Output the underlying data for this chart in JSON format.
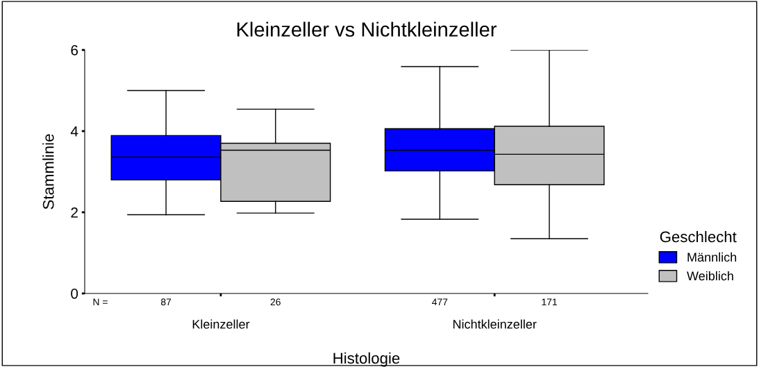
{
  "chart_data": {
    "type": "box",
    "title": "Kleinzeller vs Nichtkleinzeller",
    "xlabel": "Histologie",
    "ylabel": "Stammlinie",
    "legend_title": "Geschlecht",
    "legend": "right",
    "grid": false,
    "categories": [
      "Kleinzeller",
      "Nichtkleinzeller"
    ],
    "ylim": [
      0,
      6
    ],
    "yticks": [
      0,
      2,
      4,
      6
    ],
    "annotations": [
      "N =",
      "87",
      "26",
      "477",
      "171"
    ],
    "series": [
      {
        "name": "Männlich",
        "color": "#0000ff",
        "boxes": [
          {
            "low": 1.94,
            "q1": 2.8,
            "median": 3.36,
            "q3": 3.89,
            "high": 5.0
          },
          {
            "low": 1.83,
            "q1": 3.02,
            "median": 3.53,
            "q3": 4.06,
            "high": 5.59
          }
        ]
      },
      {
        "name": "Weiblich",
        "color": "#c0c0c0",
        "boxes": [
          {
            "low": 1.98,
            "q1": 2.27,
            "median": 3.53,
            "q3": 3.7,
            "high": 4.54
          },
          {
            "low": 1.35,
            "q1": 2.68,
            "median": 3.43,
            "q3": 4.12,
            "high": 6.0
          }
        ]
      }
    ]
  }
}
